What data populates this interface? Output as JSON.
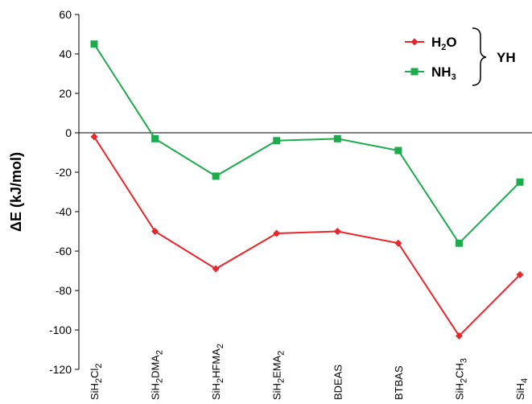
{
  "chart_data": {
    "type": "line",
    "ylabel": "ΔE (kJ/mol)",
    "xlabel": "",
    "ylim": [
      -120,
      60
    ],
    "yticks": [
      60,
      40,
      20,
      0,
      -20,
      -40,
      -60,
      -80,
      -100,
      -120
    ],
    "grid": false,
    "legend_position": "top-right",
    "legend_group_label": "YH",
    "categories": [
      {
        "base": "SiH",
        "parts": [
          [
            "2",
            "sub"
          ],
          [
            "Cl",
            ""
          ],
          [
            "2",
            "sub"
          ]
        ],
        "text": "SiH2Cl2"
      },
      {
        "base": "SiH",
        "parts": [
          [
            "2",
            "sub"
          ],
          [
            "DMA",
            ""
          ],
          [
            "2",
            "sub"
          ]
        ],
        "text": "SiH2DMA2"
      },
      {
        "base": "SiH",
        "parts": [
          [
            "2",
            "sub"
          ],
          [
            "HFMA",
            ""
          ],
          [
            "2",
            "sub"
          ]
        ],
        "text": "SiH2HFMA2"
      },
      {
        "base": "SiH",
        "parts": [
          [
            "2",
            "sub"
          ],
          [
            "EMA",
            ""
          ],
          [
            "2",
            "sub"
          ]
        ],
        "text": "SiH2EMA2"
      },
      {
        "base": "BDEAS",
        "parts": [],
        "text": "BDEAS"
      },
      {
        "base": "BTBAS",
        "parts": [],
        "text": "BTBAS"
      },
      {
        "base": "SiH",
        "parts": [
          [
            "2",
            "sub"
          ],
          [
            "CH",
            ""
          ],
          [
            "3",
            "sub"
          ]
        ],
        "text": "SiH2CH3"
      },
      {
        "base": "SiH",
        "parts": [
          [
            "4",
            "sub"
          ]
        ],
        "text": "SiH4"
      }
    ],
    "series": [
      {
        "name": "H2O",
        "name_base": "H",
        "name_parts": [
          [
            "2",
            "sub"
          ],
          [
            "O",
            ""
          ]
        ],
        "color": "#e8262b",
        "marker": "diamond",
        "values": [
          -2,
          -50,
          -69,
          -51,
          -50,
          -56,
          -103,
          -72
        ]
      },
      {
        "name": "NH3",
        "name_base": "NH",
        "name_parts": [
          [
            "3",
            "sub"
          ]
        ],
        "color": "#1eab4e",
        "marker": "square",
        "values": [
          45,
          -3,
          -22,
          -4,
          -3,
          -9,
          -56,
          -25
        ]
      }
    ]
  }
}
